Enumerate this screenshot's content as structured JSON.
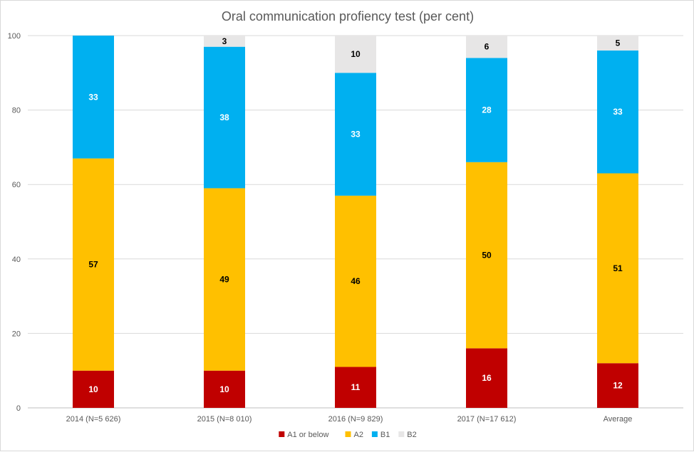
{
  "chart_data": {
    "type": "bar",
    "stacked": true,
    "title": "Oral communication profiency test (per cent)",
    "xlabel": "",
    "ylabel": "",
    "ylim": [
      0,
      100
    ],
    "yticks": [
      0,
      20,
      40,
      60,
      80,
      100
    ],
    "grid": true,
    "legend": "bottom",
    "categories": [
      "2014 (N=5 626)",
      "2015 (N=8 010)",
      "2016 (N=9 829)",
      "2017 (N=17 612)",
      "Average"
    ],
    "series": [
      {
        "name": "A1 or below",
        "color": "#c00000",
        "label_color": "#ffffff",
        "values": [
          10,
          10,
          11,
          16,
          12
        ]
      },
      {
        "name": "A2",
        "color": "#ffc000",
        "label_color": "#000000",
        "values": [
          57,
          49,
          46,
          50,
          51
        ]
      },
      {
        "name": "B1",
        "color": "#00b0f0",
        "label_color": "#ffffff",
        "values": [
          33,
          38,
          33,
          28,
          33
        ]
      },
      {
        "name": "B2",
        "color": "#e7e6e6",
        "label_color": "#000000",
        "values": [
          0,
          3,
          10,
          6,
          5
        ]
      }
    ],
    "gridline_color": "#d9d9d9",
    "axis_color": "#bfbfbf"
  }
}
